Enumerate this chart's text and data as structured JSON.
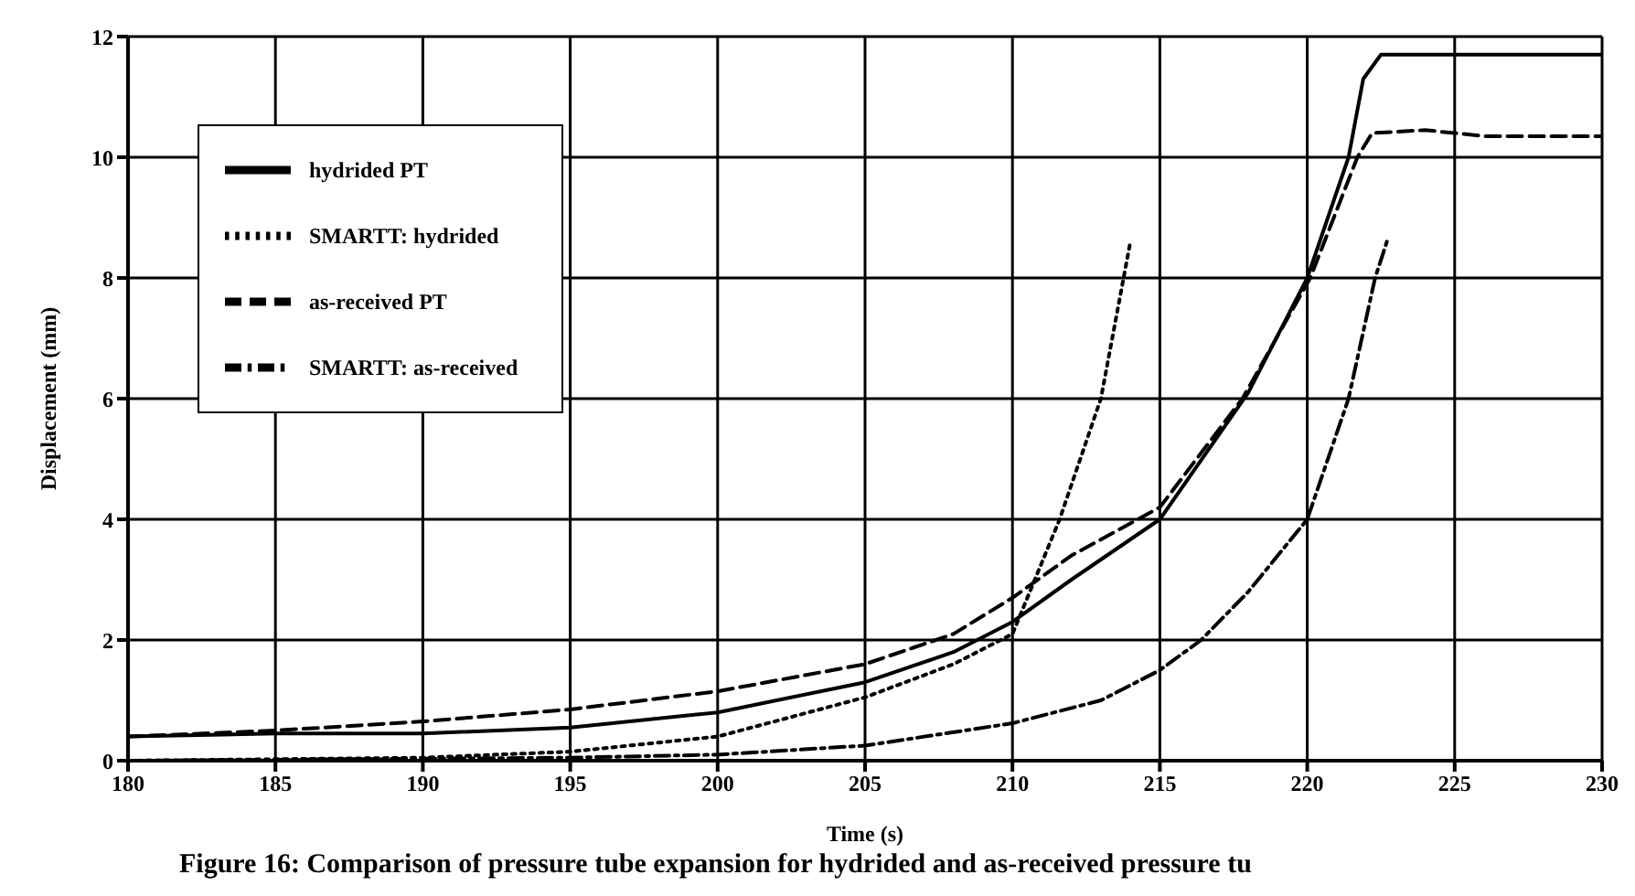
{
  "chart_data": {
    "type": "line",
    "xlabel": "Time (s)",
    "ylabel": "Displacement (mm)",
    "xlim": [
      180,
      230
    ],
    "xticks": [
      180,
      185,
      190,
      195,
      200,
      205,
      210,
      215,
      220,
      225,
      230
    ],
    "ylim": [
      0,
      12
    ],
    "yticks": [
      0,
      2,
      4,
      6,
      8,
      10,
      12
    ],
    "grid": true,
    "legend": "top left",
    "marker": "none",
    "annotations": [
      "Figure 16: Comparison of pressure tube expansion for hydrided and as-received pressure tu"
    ],
    "series": [
      {
        "name": "hydrided PT",
        "color": "#000000",
        "line_style": "solid",
        "x": [
          180,
          185,
          190,
          195,
          200,
          205,
          208,
          210,
          212,
          215,
          218,
          220,
          221.4,
          221.9,
          222.5,
          230
        ],
        "values": [
          0.4,
          0.45,
          0.45,
          0.55,
          0.8,
          1.3,
          1.8,
          2.3,
          3.0,
          4.0,
          6.1,
          8.0,
          10.0,
          11.3,
          11.7,
          11.7
        ]
      },
      {
        "name": "SMARTT: hydrided",
        "color": "#000000",
        "line_style": "dotted",
        "x": [
          180,
          190,
          195,
          200,
          205,
          208,
          210,
          211.6,
          213,
          214
        ],
        "values": [
          0,
          0.05,
          0.15,
          0.4,
          1.05,
          1.6,
          2.1,
          4.0,
          6.0,
          8.6
        ]
      },
      {
        "name": "as-received PT",
        "color": "#000000",
        "line_style": "dashed",
        "x": [
          180,
          185,
          190,
          195,
          200,
          205,
          208,
          210,
          212,
          215,
          217.8,
          220.1,
          221.7,
          222.2,
          224,
          226,
          230
        ],
        "values": [
          0.4,
          0.5,
          0.65,
          0.85,
          1.15,
          1.6,
          2.1,
          2.7,
          3.4,
          4.2,
          6.0,
          8.0,
          10.0,
          10.4,
          10.45,
          10.35,
          10.35
        ]
      },
      {
        "name": "SMARTT: as-received",
        "color": "#000000",
        "line_style": "dashdot",
        "x": [
          180,
          195,
          200,
          205,
          210,
          213,
          215,
          216.4,
          218,
          220,
          221.4,
          222.3,
          222.7
        ],
        "values": [
          0,
          0.05,
          0.1,
          0.25,
          0.62,
          1.0,
          1.5,
          2.0,
          2.8,
          4.0,
          6.0,
          8.0,
          8.6
        ]
      }
    ]
  }
}
